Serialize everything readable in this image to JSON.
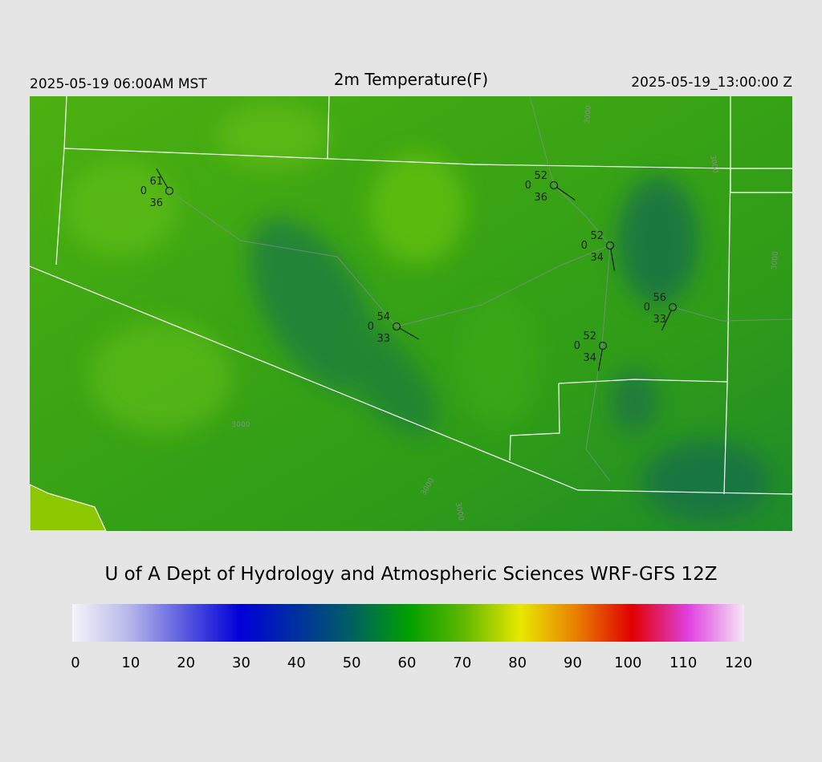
{
  "header": {
    "left": "2025-05-19 06:00AM MST",
    "title": "2m Temperature(F)",
    "right": "2025-05-19_13:00:00 Z"
  },
  "stations": [
    {
      "temp": 61,
      "wind": 0,
      "dew": 36
    },
    {
      "temp": 52,
      "wind": 0,
      "dew": 36
    },
    {
      "temp": 52,
      "wind": 0,
      "dew": 34
    },
    {
      "temp": 56,
      "wind": 0,
      "dew": 33
    },
    {
      "temp": 54,
      "wind": 0,
      "dew": 33
    },
    {
      "temp": 52,
      "wind": 0,
      "dew": 34
    }
  ],
  "contour_labels": [
    "3000",
    "3000",
    "3000",
    "3000",
    "3000",
    "3000"
  ],
  "credit": "U of A Dept of Hydrology and Atmospheric Sciences WRF-GFS 12Z",
  "colorbar": {
    "lim": [
      0,
      120
    ],
    "ticks": [
      0,
      10,
      20,
      30,
      40,
      50,
      60,
      70,
      80,
      90,
      100,
      110,
      120
    ],
    "colors": [
      "#f4f4fa",
      "#b8b8ea",
      "#5a5ae0",
      "#0000d8",
      "#0030a0",
      "#006060",
      "#00a000",
      "#60b800",
      "#e8e800",
      "#e88000",
      "#e00000",
      "#e040e0",
      "#f4e8f4"
    ]
  }
}
